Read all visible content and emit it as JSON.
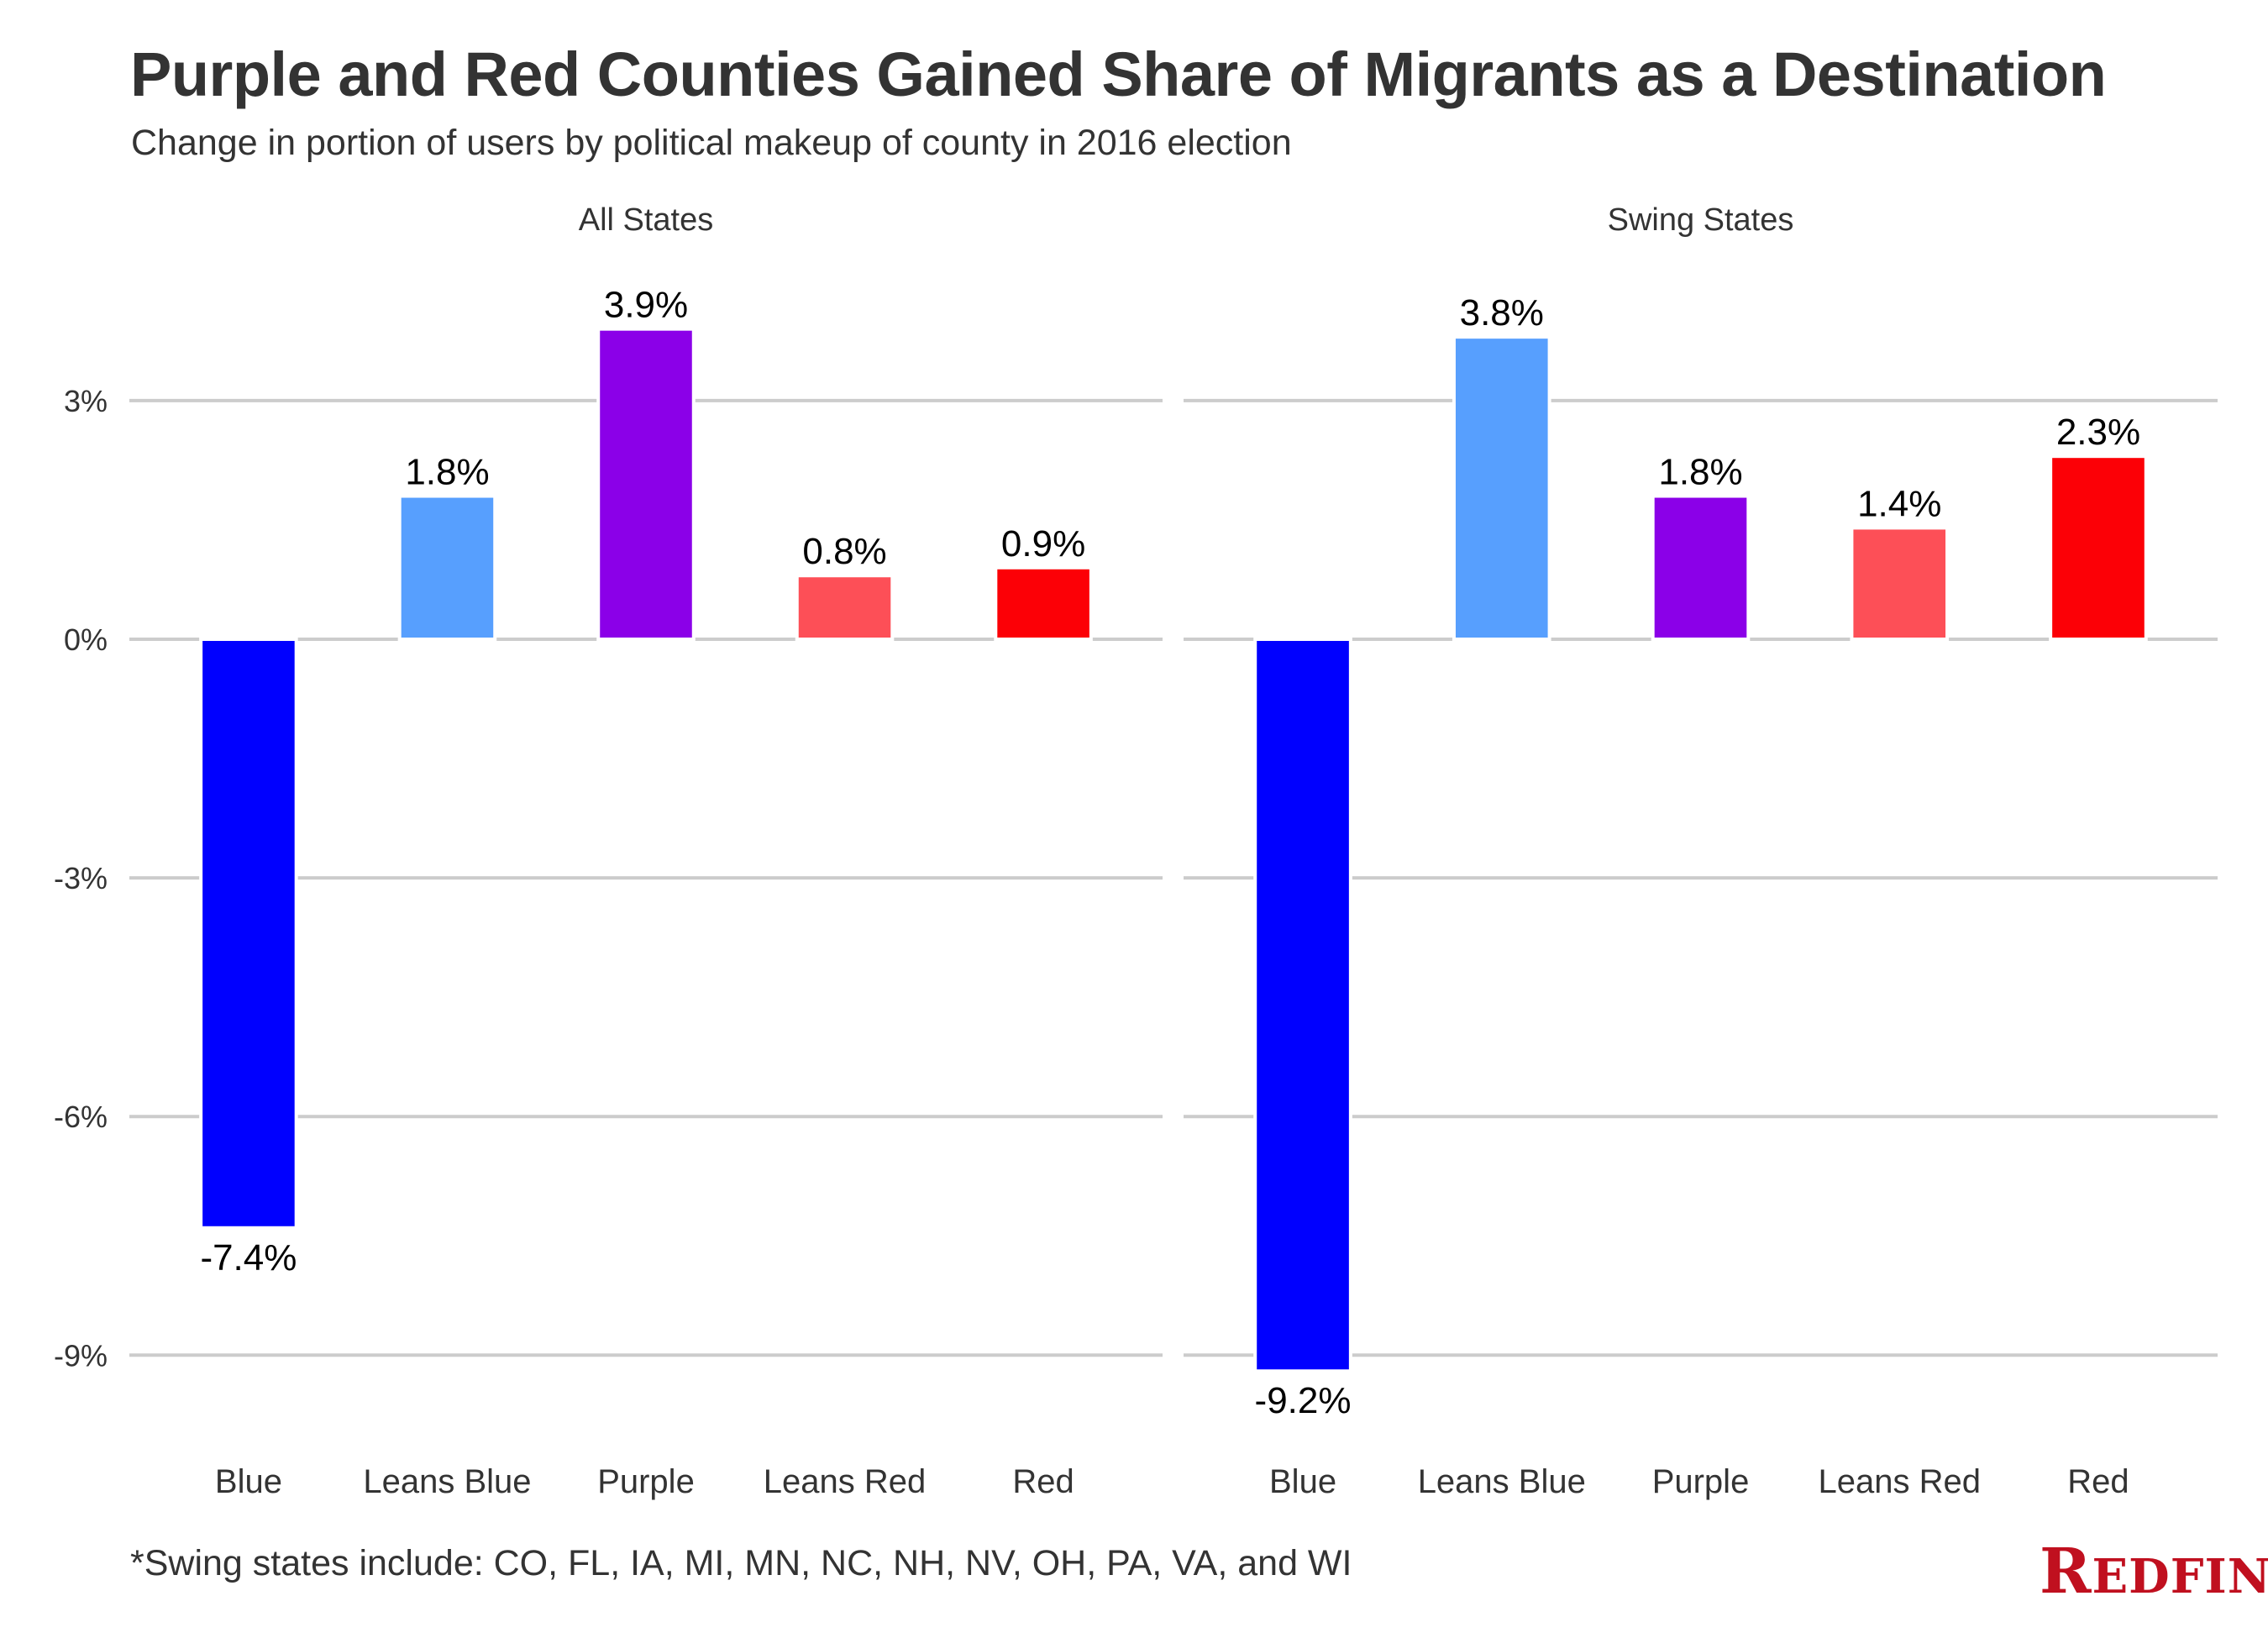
{
  "header": {
    "title": "Purple and Red Counties Gained Share of Migrants as a Destination",
    "subtitle": "Change in portion of users by political makeup of county in 2016 election"
  },
  "footer": {
    "footnote": "*Swing states include: CO, FL, IA, MI, MN, NC, NH, NV, OH, PA, VA, and WI",
    "logo_text": "REDFIN",
    "logo_color": "#c0101f"
  },
  "chart_data": {
    "type": "bar",
    "title": "Purple and Red Counties Gained Share of Migrants as a Destination",
    "subtitle": "Change in portion of users by political makeup of county in 2016 election",
    "xlabel": "",
    "ylabel": "",
    "ylim": [
      -9.9,
      4.3
    ],
    "y_ticks": [
      3,
      0,
      -3,
      -6,
      -9
    ],
    "y_tick_labels": [
      "3%",
      "0%",
      "-3%",
      "-6%",
      "-9%"
    ],
    "grid": "horizontal",
    "legend": "none",
    "categories": [
      "Blue",
      "Leans Blue",
      "Purple",
      "Leans Red",
      "Red"
    ],
    "category_colors": [
      "#0000ff",
      "#579ffe",
      "#8b00e8",
      "#fd4f57",
      "#fc0006"
    ],
    "panels": [
      {
        "name": "All States",
        "values": [
          -7.4,
          1.8,
          3.9,
          0.8,
          0.9
        ],
        "labels": [
          "-7.4%",
          "1.8%",
          "3.9%",
          "0.8%",
          "0.9%"
        ]
      },
      {
        "name": "Swing States",
        "values": [
          -9.2,
          3.8,
          1.8,
          1.4,
          2.3
        ],
        "labels": [
          "-9.2%",
          "3.8%",
          "1.8%",
          "1.4%",
          "2.3%"
        ]
      }
    ]
  }
}
